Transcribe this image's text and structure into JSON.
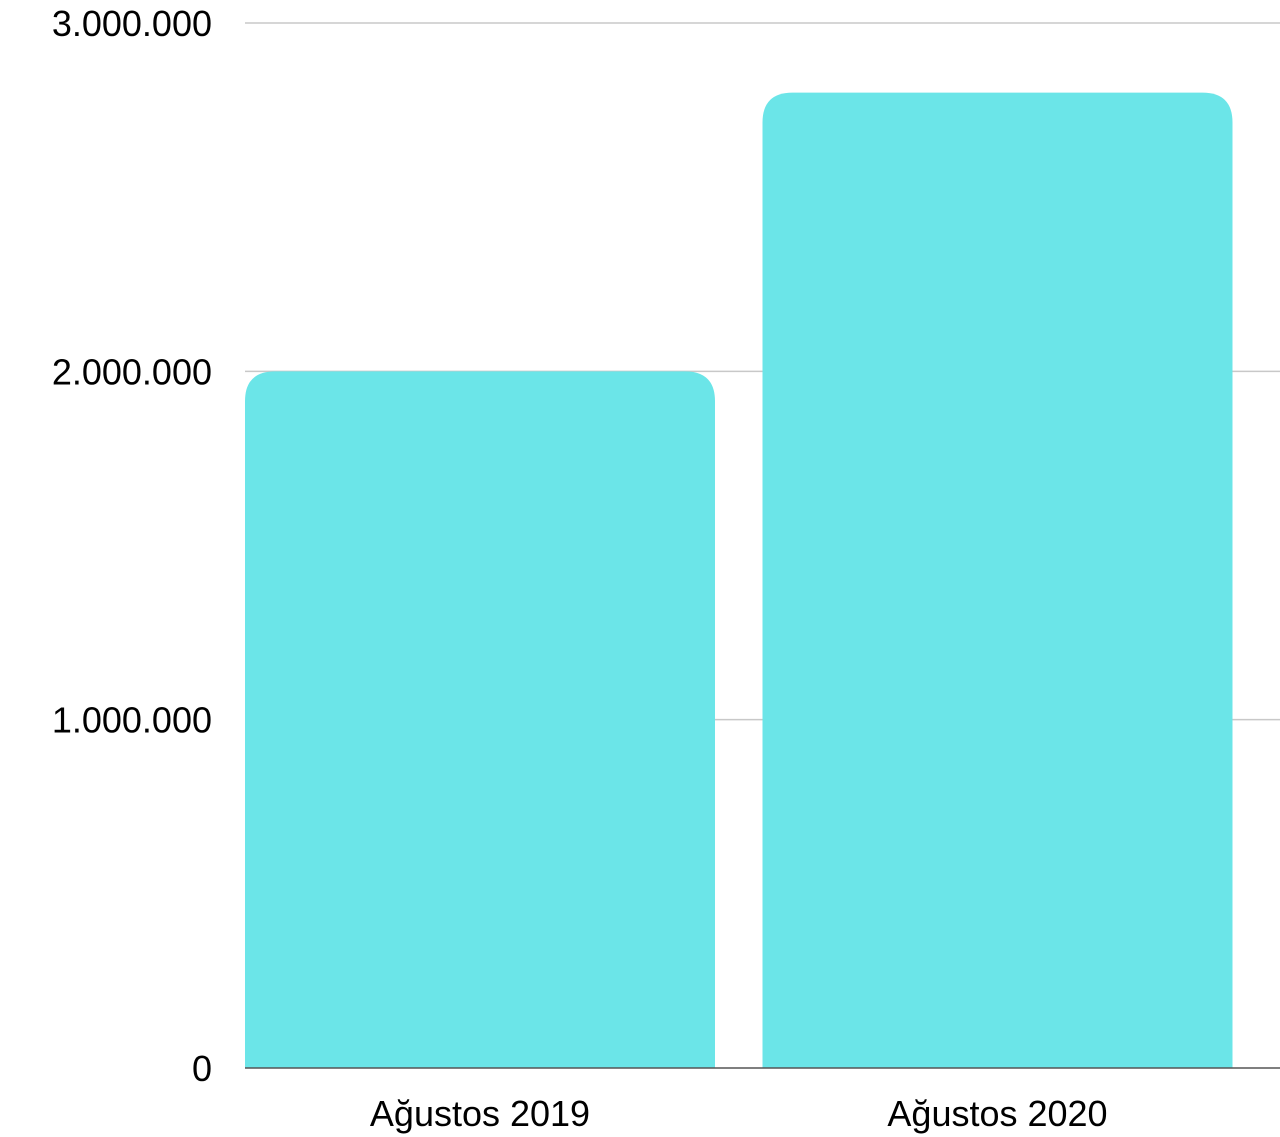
{
  "chart_data": {
    "type": "bar",
    "categories": [
      "Ağustos 2019",
      "Ağustos 2020"
    ],
    "values": [
      2000000,
      2800000
    ],
    "yticks": [
      0,
      1000000,
      2000000,
      3000000
    ],
    "ytick_labels": [
      "0",
      "1.000.000",
      "2.000.000",
      "3.000.000"
    ],
    "ylim": [
      0,
      3000000
    ],
    "grid": true,
    "bar_color": "#6be5e8",
    "gridline_color": "#c8c8c8",
    "axis_color": "#555555"
  }
}
